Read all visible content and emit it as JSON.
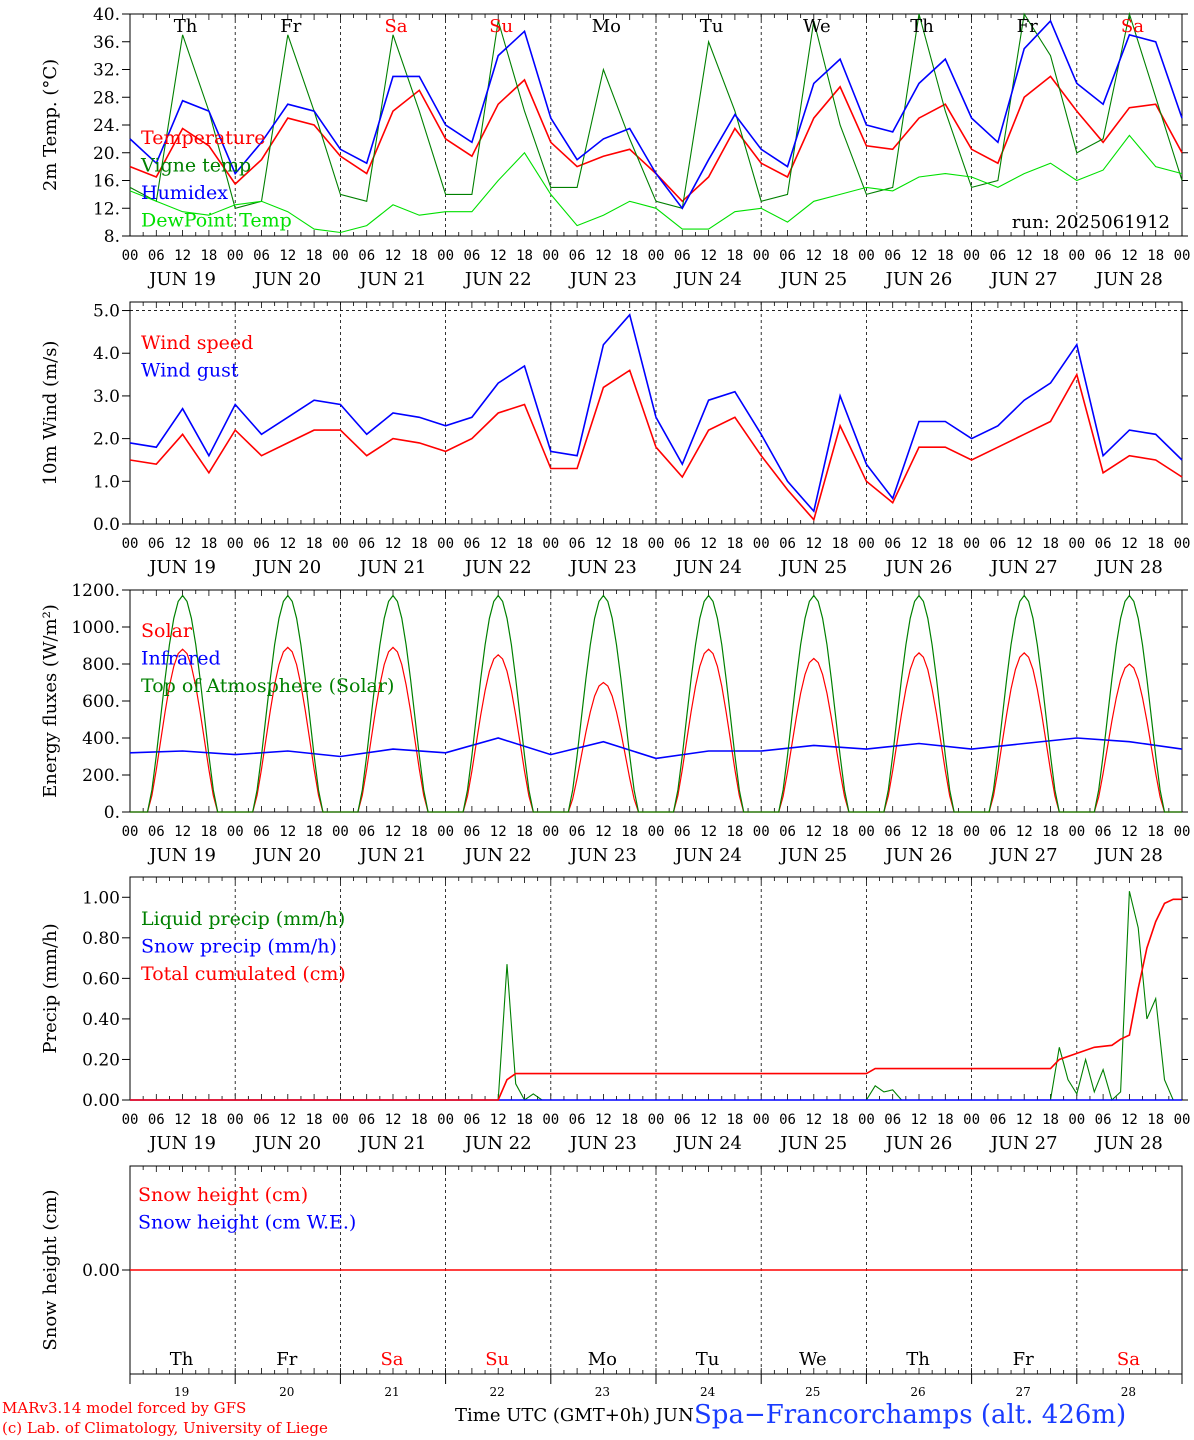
{
  "chart_data": [
    {
      "type": "line",
      "ylabel": "2m Temp. (°C)",
      "ylim": [
        8,
        40
      ],
      "yticks": [
        "8.",
        "12.",
        "16.",
        "20.",
        "24.",
        "28.",
        "32.",
        "36.",
        "40."
      ],
      "run_label": "run: 2025061912",
      "day_labels": [
        "Th",
        "Fr",
        "Sa",
        "Su",
        "Mo",
        "Tu",
        "We",
        "Th",
        "Fr",
        "Sa"
      ],
      "series": [
        {
          "name": "Temperature",
          "color": "#ff0000",
          "x": [
            0,
            6,
            12,
            18,
            24,
            30,
            36,
            42,
            48,
            54,
            60,
            66,
            72,
            78,
            84,
            90,
            96,
            102,
            108,
            114,
            120,
            126,
            132,
            138,
            144,
            150,
            156,
            162,
            168,
            174,
            180,
            186,
            192,
            198,
            204,
            210,
            216,
            222,
            228,
            234,
            240
          ],
          "values": [
            18,
            16.5,
            23.5,
            21,
            15.5,
            19,
            25,
            24,
            19.5,
            17,
            26,
            29,
            22,
            19.5,
            27,
            30.5,
            21.5,
            18,
            19.5,
            20.5,
            17,
            13,
            16.5,
            23.5,
            18.5,
            16.5,
            25,
            29.5,
            21,
            20.5,
            25,
            27,
            20.5,
            18.5,
            28,
            31,
            26,
            21.5,
            26.5,
            27,
            20
          ]
        },
        {
          "name": "Vigne temp",
          "color": "#008000",
          "x": [
            0,
            6,
            12,
            18,
            24,
            30,
            36,
            42,
            48,
            54,
            60,
            66,
            72,
            78,
            84,
            90,
            96,
            102,
            108,
            114,
            120,
            126,
            132,
            138,
            144,
            150,
            156,
            162,
            168,
            174,
            180,
            186,
            192,
            198,
            204,
            210,
            216,
            222,
            228,
            234,
            240
          ],
          "values": [
            15,
            13,
            37,
            26,
            12,
            13,
            37,
            26,
            14,
            13,
            37,
            26,
            14,
            14,
            39,
            26,
            15,
            15,
            32,
            22,
            13,
            12,
            36,
            26,
            13,
            14,
            39,
            24,
            14,
            15,
            40,
            26,
            15,
            16,
            40,
            34,
            20,
            22,
            40,
            28,
            16
          ]
        },
        {
          "name": "Humidex",
          "color": "#0000ff",
          "x": [
            0,
            6,
            12,
            18,
            24,
            30,
            36,
            42,
            48,
            54,
            60,
            66,
            72,
            78,
            84,
            90,
            96,
            102,
            108,
            114,
            120,
            126,
            132,
            138,
            144,
            150,
            156,
            162,
            168,
            174,
            180,
            186,
            192,
            198,
            204,
            210,
            216,
            222,
            228,
            234,
            240
          ],
          "values": [
            22,
            18.5,
            27.5,
            26,
            17,
            21.5,
            27,
            26,
            20.5,
            18.5,
            31,
            31,
            24,
            21.5,
            34,
            37.5,
            25,
            19,
            22,
            23.5,
            17,
            12,
            19,
            25.5,
            20.5,
            18,
            30,
            33.5,
            24,
            23,
            30,
            33.5,
            25,
            21.5,
            35,
            39,
            30,
            27,
            37,
            36,
            25
          ]
        },
        {
          "name": "DewPoint Temp",
          "color": "#00e000",
          "x": [
            0,
            6,
            12,
            18,
            24,
            30,
            36,
            42,
            48,
            54,
            60,
            66,
            72,
            78,
            84,
            90,
            96,
            102,
            108,
            114,
            120,
            126,
            132,
            138,
            144,
            150,
            156,
            162,
            168,
            174,
            180,
            186,
            192,
            198,
            204,
            210,
            216,
            222,
            228,
            234,
            240
          ],
          "values": [
            14.5,
            13,
            11.5,
            11,
            12.5,
            13,
            11.5,
            9,
            8.5,
            9.5,
            12.5,
            11,
            11.5,
            11.5,
            16,
            20,
            14,
            9.5,
            11,
            13,
            12,
            9,
            9,
            11.5,
            12,
            10,
            13,
            14,
            15,
            14.5,
            16.5,
            17,
            16.5,
            15,
            17,
            18.5,
            16,
            17.5,
            22.5,
            18,
            17
          ]
        }
      ]
    },
    {
      "type": "line",
      "ylabel": "10m Wind (m/s)",
      "ylim": [
        0,
        5.2
      ],
      "yticks": [
        "0.0",
        "1.0",
        "2.0",
        "3.0",
        "4.0",
        "5.0"
      ],
      "series": [
        {
          "name": "Wind speed",
          "color": "#ff0000",
          "x": [
            0,
            6,
            12,
            18,
            24,
            30,
            36,
            42,
            48,
            54,
            60,
            66,
            72,
            78,
            84,
            90,
            96,
            102,
            108,
            114,
            120,
            126,
            132,
            138,
            144,
            150,
            156,
            162,
            168,
            174,
            180,
            186,
            192,
            198,
            204,
            210,
            216,
            222,
            228,
            234,
            240
          ],
          "values": [
            1.5,
            1.4,
            2.1,
            1.2,
            2.2,
            1.6,
            1.9,
            2.2,
            2.2,
            1.6,
            2,
            1.9,
            1.7,
            2,
            2.6,
            2.8,
            1.3,
            1.3,
            3.2,
            3.6,
            1.8,
            1.1,
            2.2,
            2.5,
            1.6,
            0.8,
            0.1,
            2.3,
            1,
            0.5,
            1.8,
            1.8,
            1.5,
            1.8,
            2.1,
            2.4,
            3.5,
            1.2,
            1.6,
            1.5,
            1.1
          ]
        },
        {
          "name": "Wind gust",
          "color": "#0000ff",
          "x": [
            0,
            6,
            12,
            18,
            24,
            30,
            36,
            42,
            48,
            54,
            60,
            66,
            72,
            78,
            84,
            90,
            96,
            102,
            108,
            114,
            120,
            126,
            132,
            138,
            144,
            150,
            156,
            162,
            168,
            174,
            180,
            186,
            192,
            198,
            204,
            210,
            216,
            222,
            228,
            234,
            240
          ],
          "values": [
            1.9,
            1.8,
            2.7,
            1.6,
            2.8,
            2.1,
            2.5,
            2.9,
            2.8,
            2.1,
            2.6,
            2.5,
            2.3,
            2.5,
            3.3,
            3.7,
            1.7,
            1.6,
            4.2,
            4.9,
            2.5,
            1.4,
            2.9,
            3.1,
            2.1,
            1,
            0.3,
            3,
            1.4,
            0.6,
            2.4,
            2.4,
            2,
            2.3,
            2.9,
            3.3,
            4.2,
            1.6,
            2.2,
            2.1,
            1.5
          ]
        }
      ]
    },
    {
      "type": "line",
      "ylabel": "Energy fluxes (W/m²)",
      "ylim": [
        0,
        1200
      ],
      "yticks": [
        "0.",
        "200.",
        "400.",
        "600.",
        "800.",
        "1000.",
        "1200."
      ],
      "series": [
        {
          "name": "Solar",
          "color": "#ff0000",
          "peaks": [
            880,
            890,
            890,
            850,
            700,
            880,
            830,
            860,
            860,
            800
          ]
        },
        {
          "name": "Infrared",
          "color": "#0000ff",
          "x": [
            0,
            12,
            24,
            36,
            48,
            60,
            72,
            84,
            96,
            108,
            120,
            132,
            144,
            156,
            168,
            180,
            192,
            204,
            216,
            228,
            240
          ],
          "values": [
            320,
            330,
            310,
            330,
            300,
            340,
            320,
            400,
            310,
            380,
            290,
            330,
            330,
            360,
            340,
            370,
            340,
            370,
            400,
            380,
            340
          ]
        },
        {
          "name": "Top of Atmosphere (Solar)",
          "color": "#008000",
          "peaks": [
            1170,
            1170,
            1170,
            1170,
            1170,
            1170,
            1170,
            1170,
            1170,
            1170
          ]
        }
      ]
    },
    {
      "type": "line",
      "ylabel": "Precip (mm/h)",
      "ylim": [
        0,
        1.1
      ],
      "yticks": [
        "0.00",
        "0.20",
        "0.40",
        "0.60",
        "0.80",
        "1.00"
      ],
      "series": [
        {
          "name": "Liquid precip (mm/h)",
          "color": "#008000",
          "x": [
            0,
            84,
            86,
            88,
            90,
            92,
            94,
            96,
            168,
            170,
            172,
            174,
            176,
            210,
            212,
            214,
            216,
            218,
            220,
            222,
            224,
            226,
            228,
            230,
            232,
            234,
            236,
            238,
            240
          ],
          "values": [
            0,
            0,
            0.67,
            0.08,
            0,
            0.03,
            0,
            0,
            0,
            0.07,
            0.04,
            0.05,
            0,
            0,
            0.26,
            0.1,
            0.03,
            0.2,
            0.04,
            0.15,
            0,
            0.04,
            1.03,
            0.85,
            0.4,
            0.5,
            0.1,
            0,
            0
          ]
        },
        {
          "name": "Snow precip (mm/h)",
          "color": "#0000ff",
          "x": [
            0,
            240
          ],
          "values": [
            0,
            0
          ]
        },
        {
          "name": "Total cumulated (cm)",
          "color": "#ff0000",
          "x": [
            0,
            84,
            86,
            88,
            168,
            170,
            210,
            212,
            216,
            220,
            224,
            226,
            228,
            230,
            232,
            234,
            236,
            238,
            240
          ],
          "values": [
            0,
            0,
            0.1,
            0.13,
            0.13,
            0.155,
            0.155,
            0.2,
            0.23,
            0.26,
            0.27,
            0.3,
            0.32,
            0.55,
            0.75,
            0.88,
            0.97,
            0.99,
            0.99
          ]
        }
      ]
    },
    {
      "type": "line",
      "ylabel": "Snow height (cm)",
      "yticks": [
        "0.00"
      ],
      "series": [
        {
          "name": "Snow height (cm)",
          "color": "#ff0000",
          "x": [
            0,
            240
          ],
          "values": [
            0,
            0
          ]
        },
        {
          "name": "Snow height (cm W.E.)",
          "color": "#0000ff"
        }
      ],
      "day_labels": [
        "Th",
        "Fr",
        "Sa",
        "Su",
        "Mo",
        "Tu",
        "We",
        "Th",
        "Fr",
        "Sa"
      ],
      "day_numbers": [
        "19",
        "20",
        "21",
        "22",
        "23",
        "24",
        "25",
        "26",
        "27",
        "28"
      ]
    }
  ],
  "x_axis": {
    "hour_labels": [
      "00",
      "06",
      "12",
      "18"
    ],
    "end_label": "00",
    "date_labels": [
      "JUN 19",
      "JUN 20",
      "JUN 21",
      "JUN 22",
      "JUN 23",
      "JUN 24",
      "JUN 25",
      "JUN 26",
      "JUN 27",
      "JUN 28"
    ],
    "title": "Time UTC (GMT+0h) JUN"
  },
  "weekend_color": "#ff0000",
  "weekend_days": [
    "Sa",
    "Su"
  ],
  "footer": {
    "credit_line1": "MARv3.14 model forced by GFS",
    "credit_line2": "(c) Lab. of Climatology, University of Liege",
    "station": "Spa−Francorchamps (alt. 426m)"
  }
}
